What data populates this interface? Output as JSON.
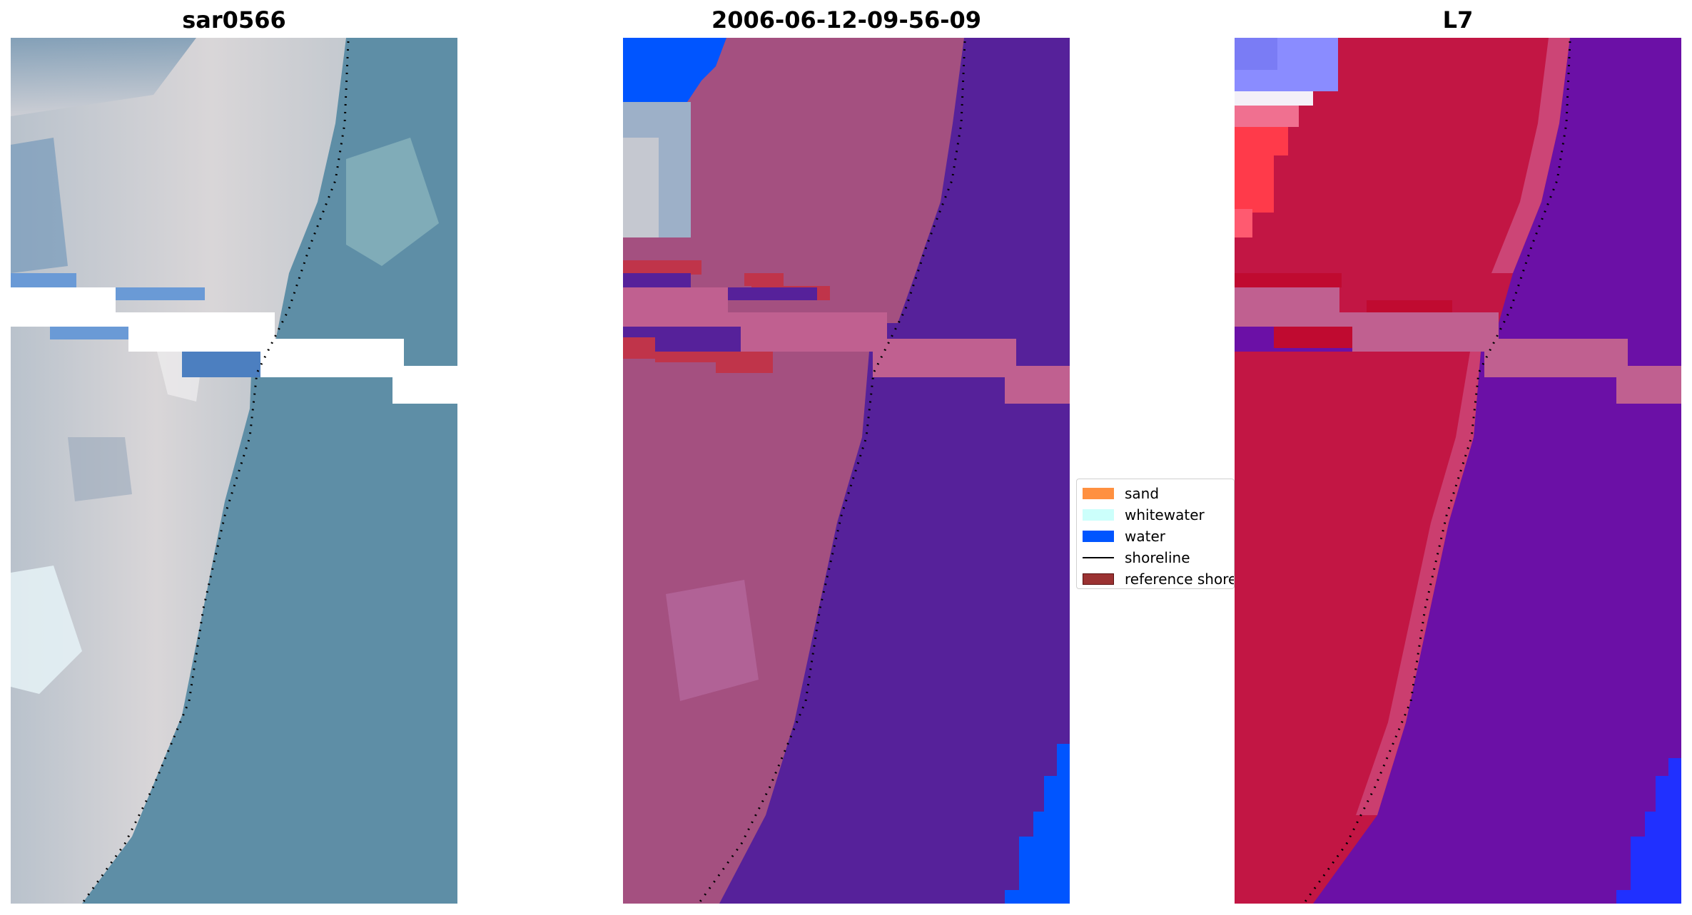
{
  "panels": [
    {
      "title": "sar0566"
    },
    {
      "title": "2006-06-12-09-56-09"
    },
    {
      "title": "L7"
    }
  ],
  "legend": {
    "items": [
      {
        "label": "sand",
        "color": "#ff9040",
        "kind": "patch"
      },
      {
        "label": "whitewater",
        "color": "#ccfffb",
        "kind": "patch"
      },
      {
        "label": "water",
        "color": "#0055ff",
        "kind": "patch"
      },
      {
        "label": "shoreline",
        "color": "#000000",
        "kind": "line"
      },
      {
        "label": "reference shoreline",
        "color": "#9b3232",
        "kind": "patch"
      }
    ]
  },
  "colors": {
    "rgb_water": "#5e8ea6",
    "rgb_sand": "#c8c9cf",
    "classified_sand": "#a45080",
    "classified_water": "#56219a",
    "index_land": "#c21644",
    "index_water": "#6b10a6",
    "nodata": "#c06090"
  }
}
